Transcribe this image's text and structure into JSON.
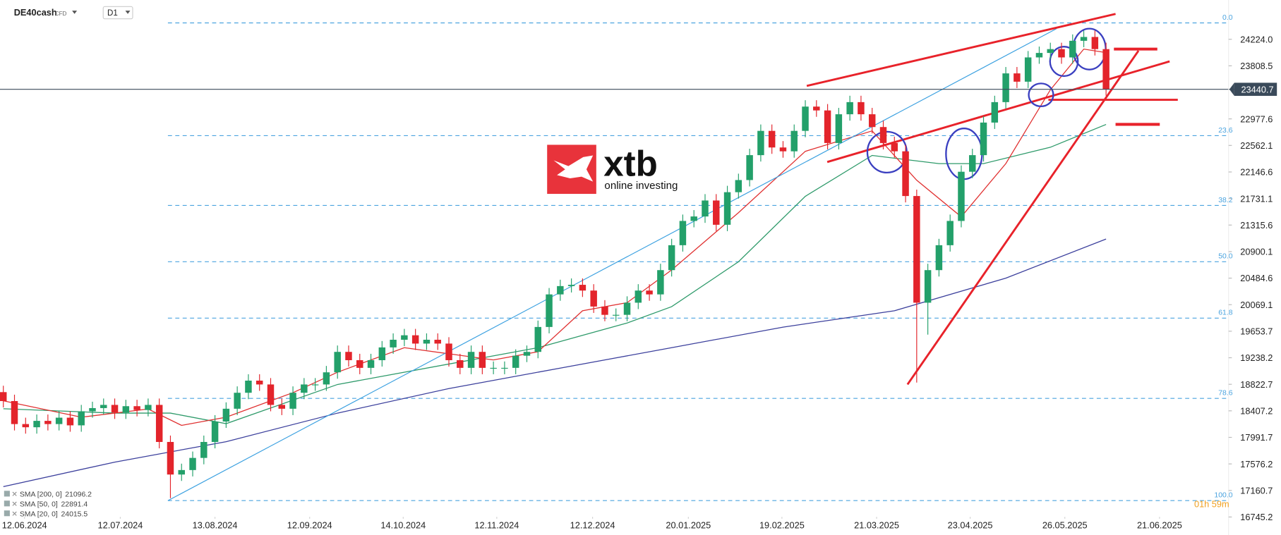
{
  "chart_data": {
    "type": "candlestick",
    "symbol": "DE40cash",
    "instrument_type": "CFD",
    "timeframe": "D1",
    "up_color": "#23a06a",
    "down_color": "#e3242b",
    "open": [
      18700,
      18560,
      18200,
      18150,
      18250,
      18200,
      18300,
      18180,
      18400,
      18450,
      18500,
      18380,
      18480,
      18420,
      18500,
      17920,
      17410,
      17480,
      17670,
      17920,
      18240,
      18440,
      18690,
      18880,
      18820,
      18500,
      18440,
      18690,
      18820,
      18820,
      19010,
      19330,
      19200,
      19080,
      19200,
      19400,
      19520,
      19590,
      19460,
      19520,
      19460,
      19200,
      19080,
      19330,
      19080,
      19080,
      19080,
      19270,
      19330,
      19720,
      20230,
      20360,
      20380,
      20290,
      20040,
      19910,
      19910,
      20100,
      20290,
      20230,
      20610,
      21000,
      21380,
      21450,
      21700,
      21320,
      21830,
      22020,
      22410,
      22790,
      22530,
      22470,
      22790,
      23170,
      23110,
      22600,
      23050,
      23240,
      23050,
      22850,
      22600,
      22470,
      21770,
      20100,
      20610,
      21000,
      21380,
      22150,
      22410,
      22920,
      23240,
      23690,
      23560,
      23940,
      24010,
      24070,
      23940,
      24200,
      24260,
      24070
    ],
    "high": [
      18800,
      18660,
      18300,
      18350,
      18350,
      18400,
      18400,
      18500,
      18550,
      18600,
      18600,
      18580,
      18580,
      18600,
      18600,
      18020,
      17580,
      17770,
      18020,
      18340,
      18540,
      18790,
      18980,
      18980,
      18920,
      18600,
      18790,
      18920,
      18920,
      19110,
      19430,
      19430,
      19300,
      19300,
      19500,
      19620,
      19690,
      19690,
      19620,
      19620,
      19560,
      19300,
      19430,
      19430,
      19180,
      19180,
      19370,
      19430,
      19820,
      20330,
      20460,
      20480,
      20480,
      20390,
      20140,
      20010,
      20200,
      20390,
      20390,
      20710,
      21100,
      21480,
      21550,
      21800,
      21800,
      21930,
      22120,
      22510,
      22890,
      22890,
      22630,
      22890,
      23270,
      23270,
      23210,
      23150,
      23340,
      23340,
      23150,
      22950,
      22700,
      22570,
      21870,
      20710,
      21100,
      21480,
      22250,
      22510,
      23020,
      23340,
      23790,
      23790,
      24040,
      24110,
      24170,
      24170,
      24300,
      24360,
      24360,
      24170
    ],
    "low": [
      18460,
      18100,
      18050,
      18050,
      18100,
      18100,
      18080,
      18080,
      18300,
      18350,
      18280,
      18280,
      18320,
      18320,
      17820,
      17040,
      17310,
      17380,
      17570,
      17820,
      18140,
      18340,
      18590,
      18720,
      18400,
      18340,
      18340,
      18590,
      18720,
      18720,
      18910,
      19100,
      18980,
      18980,
      19100,
      19300,
      19420,
      19360,
      19360,
      19360,
      19100,
      18980,
      18980,
      18980,
      18980,
      18980,
      18980,
      19170,
      19230,
      19620,
      20130,
      20260,
      20190,
      19940,
      19810,
      19810,
      19810,
      20000,
      20130,
      20130,
      20510,
      20900,
      21280,
      21350,
      21220,
      21220,
      21730,
      21920,
      22310,
      22430,
      22370,
      22370,
      22690,
      23010,
      22500,
      22500,
      22950,
      22950,
      22750,
      22500,
      22370,
      21670,
      18850,
      19600,
      20510,
      20900,
      21280,
      22050,
      22310,
      22820,
      23140,
      23460,
      23460,
      23840,
      23910,
      23840,
      23840,
      24100,
      23970,
      23340
    ],
    "close": [
      18560,
      18200,
      18150,
      18250,
      18200,
      18300,
      18180,
      18400,
      18450,
      18500,
      18380,
      18480,
      18420,
      18500,
      17920,
      17410,
      17480,
      17670,
      17920,
      18240,
      18440,
      18690,
      18880,
      18820,
      18500,
      18440,
      18690,
      18820,
      18820,
      19010,
      19330,
      19200,
      19080,
      19200,
      19400,
      19520,
      19590,
      19460,
      19520,
      19460,
      19200,
      19080,
      19330,
      19080,
      19080,
      19080,
      19270,
      19330,
      19720,
      20230,
      20360,
      20380,
      20290,
      20040,
      19910,
      19910,
      20100,
      20290,
      20230,
      20610,
      21000,
      21380,
      21450,
      21700,
      21320,
      21830,
      22020,
      22410,
      22790,
      22530,
      22470,
      22790,
      23170,
      23110,
      22600,
      23050,
      23240,
      23050,
      22850,
      22600,
      22470,
      21770,
      20100,
      20610,
      21000,
      21380,
      22150,
      22410,
      22920,
      23240,
      23690,
      23560,
      23940,
      24010,
      24070,
      23940,
      24200,
      24260,
      24070,
      23440.7
    ],
    "xlim": [
      -0.3,
      110
    ],
    "xticks": [
      {
        "value": 1.9,
        "label": "12.06.2024"
      },
      {
        "value": 10.5,
        "label": "12.07.2024"
      },
      {
        "value": 19.0,
        "label": "13.08.2024"
      },
      {
        "value": 27.5,
        "label": "12.09.2024"
      },
      {
        "value": 35.9,
        "label": "14.10.2024"
      },
      {
        "value": 44.3,
        "label": "12.11.2024"
      },
      {
        "value": 52.9,
        "label": "12.12.2024"
      },
      {
        "value": 61.5,
        "label": "20.01.2025"
      },
      {
        "value": 69.9,
        "label": "19.02.2025"
      },
      {
        "value": 78.4,
        "label": "21.03.2025"
      },
      {
        "value": 86.8,
        "label": "23.04.2025"
      },
      {
        "value": 95.3,
        "label": "26.05.2025"
      },
      {
        "value": 103.8,
        "label": "21.06.2025"
      }
    ],
    "ylim": [
      16745.2,
      24838.6
    ],
    "yticks": [
      {
        "value": 24224,
        "label": "24224.0"
      },
      23808.5,
      22977.6,
      22562.1,
      22146.6,
      21731.1,
      21315.6,
      20900.1,
      20484.6,
      20069.1,
      19653.7,
      19238.2,
      18822.7,
      18407.2,
      17991.7,
      17576.2,
      17160.7,
      16745.2
    ],
    "current_price": 23440.7,
    "sma": [
      {
        "name": "SMA [200, 0]",
        "color": "#3b3f9c",
        "x": [
          0,
          10,
          20,
          30,
          40,
          50,
          60,
          70,
          80,
          90,
          99
        ],
        "values": [
          17220,
          17604,
          17924,
          18372,
          18756,
          19076,
          19396,
          19717,
          19973,
          20485,
          21096.2
        ]
      },
      {
        "name": "SMA [50, 0]",
        "color": "#2e9a6a",
        "x": [
          0,
          10,
          15,
          20,
          30,
          40,
          48,
          56,
          60,
          66,
          72,
          78,
          84,
          88,
          94,
          99
        ],
        "values": [
          18440,
          18372,
          18372,
          18206,
          18820,
          19140,
          19396,
          19781,
          20037,
          20741,
          21765,
          22406,
          22278,
          22278,
          22534,
          22891.4
        ]
      },
      {
        "name": "SMA [20, 0]",
        "color": "#e03030",
        "x": [
          0,
          7,
          13,
          16,
          20,
          26,
          30,
          36,
          44,
          48,
          52,
          56,
          60,
          66,
          72,
          78,
          82,
          86,
          90,
          94,
          97,
          99
        ],
        "values": [
          18564,
          18308,
          18436,
          18180,
          18308,
          18692,
          19012,
          19396,
          19204,
          19332,
          19973,
          20101,
          20613,
          21509,
          22470,
          22790,
          22018,
          21445,
          22278,
          23432,
          24070,
          24015.5
        ]
      }
    ],
    "fib_color": "#4aa3df",
    "fib_levels": [
      {
        "label": "0.0",
        "value": 24480
      },
      {
        "label": "23.6",
        "value": 22715
      },
      {
        "label": "38.2",
        "value": 21623
      },
      {
        "label": "50.0",
        "value": 20741
      },
      {
        "label": "61.8",
        "value": 19859
      },
      {
        "label": "78.6",
        "value": 18602
      },
      {
        "label": "100.0",
        "value": 17002
      }
    ],
    "countdown": "01h 59m",
    "logo": {
      "name": "xtb",
      "tagline": "online investing"
    }
  }
}
